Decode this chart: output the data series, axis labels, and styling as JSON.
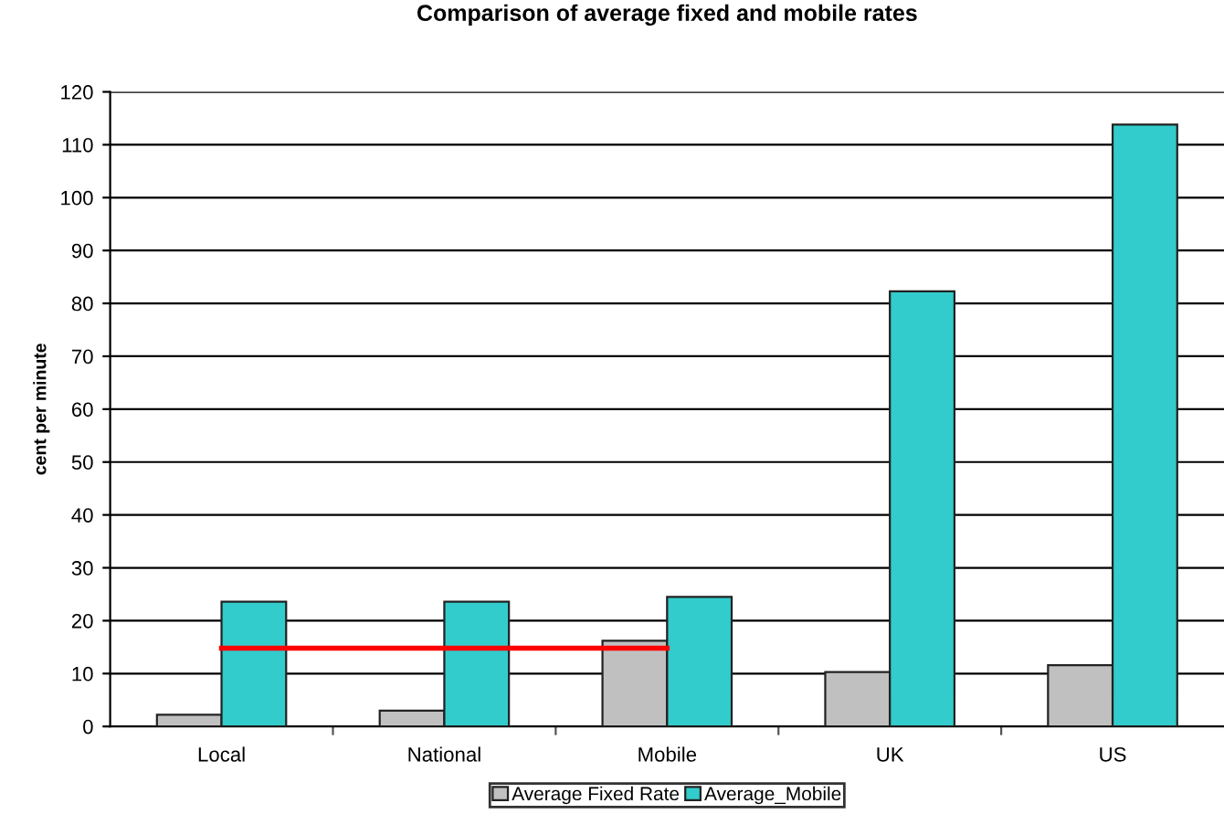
{
  "chart_data": {
    "type": "bar",
    "title": "Comparison of average fixed and mobile rates",
    "ylabel": "cent per minute",
    "categories": [
      "Local",
      "National",
      "Mobile",
      "UK",
      "US"
    ],
    "series": [
      {
        "name": "Average Fixed Rate",
        "color": "#c0c0c0",
        "values": [
          2.2,
          3.0,
          16.2,
          10.3,
          11.6
        ]
      },
      {
        "name": "Average_Mobile",
        "color": "#33cccc",
        "values": [
          23.6,
          23.6,
          24.5,
          82.3,
          113.8
        ]
      },
      {
        "type": "line",
        "color": "#ff0000",
        "values": [
          14.8,
          14.8,
          14.8,
          null,
          null
        ]
      }
    ],
    "ylim": [
      0,
      120
    ],
    "yticks": [
      0,
      10,
      20,
      30,
      40,
      50,
      60,
      70,
      80,
      90,
      100,
      110,
      120
    ],
    "grid": "y",
    "legend": "bottom"
  }
}
